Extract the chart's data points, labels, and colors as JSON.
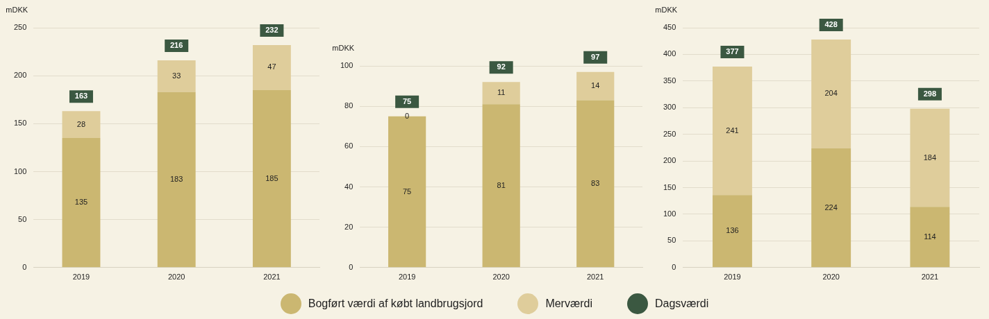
{
  "chart_data": [
    {
      "type": "bar",
      "ylabel": "mDKK",
      "categories": [
        "2019",
        "2020",
        "2021"
      ],
      "stacked": true,
      "data_labels": true,
      "legend": "bottom",
      "grid": "y",
      "ylim": [
        0,
        250
      ],
      "yticks": [
        0,
        50,
        100,
        150,
        200,
        250
      ],
      "totals": [
        "163",
        "216",
        "232"
      ],
      "series": [
        {
          "name": "Bogført værdi af købt landbrugsjord",
          "color": "#cbb771",
          "values": [
            135,
            183,
            185
          ]
        },
        {
          "name": "Merværdi",
          "color": "#dfcd9b",
          "values": [
            28,
            33,
            47
          ]
        },
        {
          "name": "Dagsværdi",
          "color": "#3b5841",
          "values": [
            null,
            null,
            null
          ]
        }
      ]
    },
    {
      "type": "bar",
      "ylabel": "mDKK",
      "categories": [
        "2019",
        "2020",
        "2021"
      ],
      "stacked": true,
      "data_labels": true,
      "grid": "y",
      "ylim": [
        0,
        100
      ],
      "yticks": [
        0,
        20,
        40,
        60,
        80,
        100
      ],
      "totals": [
        "75",
        "92",
        "97"
      ],
      "series": [
        {
          "color": "#cbb771",
          "values": [
            75,
            81,
            83
          ]
        },
        {
          "color": "#dfcd9b",
          "values": [
            0,
            11,
            14
          ]
        },
        {
          "color": "#3b5841",
          "values": [
            null,
            null,
            null
          ]
        }
      ]
    },
    {
      "type": "bar",
      "ylabel": "mDKK",
      "categories": [
        "2019",
        "2020",
        "2021"
      ],
      "stacked": true,
      "data_labels": true,
      "grid": "y",
      "ylim": [
        0,
        450
      ],
      "yticks": [
        0,
        50,
        100,
        150,
        200,
        250,
        300,
        350,
        400,
        450
      ],
      "totals": [
        "377",
        "428",
        "298"
      ],
      "series": [
        {
          "color": "#cbb771",
          "values": [
            136,
            224,
            114
          ]
        },
        {
          "color": "#dfcd9b",
          "values": [
            241,
            204,
            184
          ]
        },
        {
          "color": "#3b5841",
          "values": [
            null,
            null,
            null
          ]
        }
      ]
    }
  ]
}
